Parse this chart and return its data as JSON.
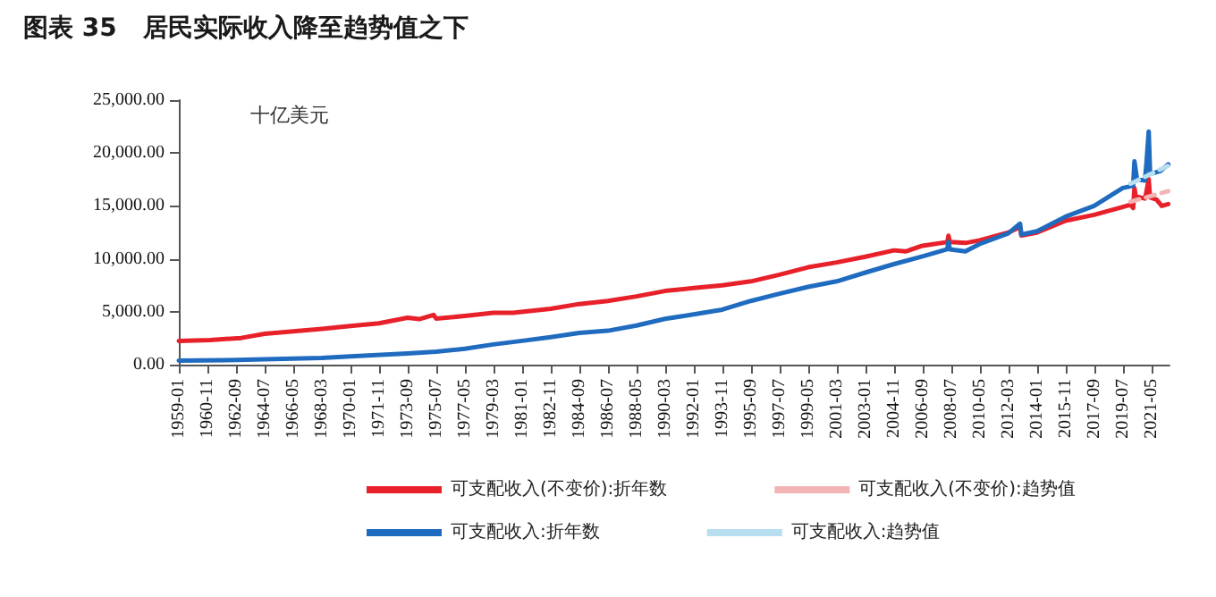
{
  "chart_data": {
    "type": "line",
    "title": "图表 35   居民实际收入降至趋势值之下",
    "ylabel": "十亿美元",
    "xlim": [
      "1959-01",
      "2022-07"
    ],
    "xticks": [
      "1959-01",
      "1960-11",
      "1962-09",
      "1964-07",
      "1966-05",
      "1968-03",
      "1970-01",
      "1971-11",
      "1973-09",
      "1975-07",
      "1977-05",
      "1979-03",
      "1981-01",
      "1982-11",
      "1984-09",
      "1986-07",
      "1988-05",
      "1990-03",
      "1992-01",
      "1993-11",
      "1995-09",
      "1997-07",
      "1999-05",
      "2001-03",
      "2003-01",
      "2004-11",
      "2006-09",
      "2008-07",
      "2010-05",
      "2012-03",
      "2014-01",
      "2015-11",
      "2017-09",
      "2019-07",
      "2021-05"
    ],
    "ylim": [
      0,
      25000
    ],
    "yticks": [
      {
        "value": 0,
        "label": "0.00"
      },
      {
        "value": 5000,
        "label": "5,000.00"
      },
      {
        "value": 10000,
        "label": "10,000.00"
      },
      {
        "value": 15000,
        "label": "15,000.00"
      },
      {
        "value": 20000,
        "label": "20,000.00"
      },
      {
        "value": 25000,
        "label": "25,000.00"
      }
    ],
    "grid": false,
    "legend": "bottom",
    "marker": "none",
    "series": [
      {
        "name": "可支配收入(不变价):折年数",
        "color": "#e8202a",
        "line_style": "solid",
        "x": [
          "1959-01",
          "1961-01",
          "1963-01",
          "1964-07",
          "1966-05",
          "1968-03",
          "1970-01",
          "1971-11",
          "1973-09",
          "1974-06",
          "1975-05",
          "1975-07",
          "1977-05",
          "1979-03",
          "1980-06",
          "1982-11",
          "1984-09",
          "1986-07",
          "1988-05",
          "1990-03",
          "1992-01",
          "1993-11",
          "1995-09",
          "1997-07",
          "1999-05",
          "2001-03",
          "2003-01",
          "2004-11",
          "2005-08",
          "2006-09",
          "2008-04",
          "2008-05",
          "2008-06",
          "2009-06",
          "2010-05",
          "2012-03",
          "2012-12",
          "2013-01",
          "2014-01",
          "2015-11",
          "2017-09",
          "2019-07",
          "2020-01",
          "2020-03",
          "2020-04",
          "2020-05",
          "2020-12",
          "2021-01",
          "2021-03",
          "2021-04",
          "2021-09",
          "2022-01",
          "2022-06"
        ],
        "values": [
          2240,
          2330,
          2520,
          2920,
          3150,
          3380,
          3660,
          3900,
          4430,
          4300,
          4700,
          4350,
          4600,
          4890,
          4900,
          5280,
          5730,
          6020,
          6450,
          6960,
          7250,
          7500,
          7870,
          8500,
          9200,
          9660,
          10200,
          10800,
          10700,
          11240,
          11580,
          12190,
          11600,
          11500,
          11750,
          12480,
          13000,
          12200,
          12480,
          13600,
          14160,
          14890,
          15100,
          14800,
          16690,
          15900,
          15700,
          16200,
          17530,
          15800,
          15600,
          15000,
          15170
        ]
      },
      {
        "name": "可支配收入(不变价):趋势值",
        "color": "#f2b4b4",
        "line_style": "dashed",
        "x": [
          "2020-01",
          "2022-06"
        ],
        "values": [
          15400,
          16400
        ]
      },
      {
        "name": "可支配收入:折年数",
        "color": "#1f6bbf",
        "line_style": "solid",
        "x": [
          "1959-01",
          "1962-01",
          "1964-07",
          "1968-03",
          "1970-01",
          "1973-09",
          "1975-07",
          "1977-05",
          "1979-03",
          "1981-01",
          "1982-11",
          "1984-09",
          "1986-07",
          "1988-05",
          "1990-03",
          "1992-01",
          "1993-11",
          "1995-09",
          "1997-07",
          "1999-05",
          "2001-03",
          "2003-01",
          "2004-11",
          "2006-09",
          "2008-04",
          "2008-05",
          "2008-06",
          "2009-06",
          "2010-05",
          "2012-03",
          "2012-12",
          "2013-01",
          "2014-01",
          "2015-11",
          "2017-09",
          "2019-07",
          "2020-03",
          "2020-04",
          "2020-06",
          "2020-12",
          "2021-01",
          "2021-03",
          "2021-04",
          "2021-06",
          "2021-12",
          "2022-06"
        ],
        "values": [
          390,
          430,
          500,
          640,
          790,
          1050,
          1230,
          1500,
          1910,
          2250,
          2600,
          3000,
          3200,
          3700,
          4330,
          4750,
          5200,
          6020,
          6700,
          7350,
          7870,
          8700,
          9500,
          10230,
          10900,
          11600,
          10900,
          10700,
          11400,
          12400,
          13320,
          12300,
          12600,
          13990,
          15000,
          16690,
          16900,
          19220,
          17500,
          17400,
          18700,
          22030,
          18300,
          18090,
          18300,
          18930
        ]
      },
      {
        "name": "可支配收入:趋势值",
        "color": "#b7dff0",
        "line_style": "dashed",
        "x": [
          "2020-01",
          "2022-06"
        ],
        "values": [
          17100,
          18800
        ]
      }
    ]
  }
}
